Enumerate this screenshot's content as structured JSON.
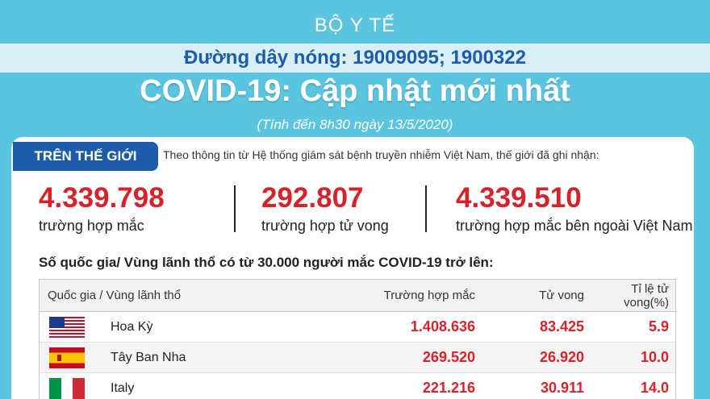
{
  "header": {
    "ministry": "BỘ Y TẾ",
    "hotline": "Đường dây nóng: 19009095; 1900322",
    "headline": "COVID-19: Cập nhật mới nhất",
    "as_of": "(Tính đến 8h30 ngày 13/5/2020)"
  },
  "world": {
    "tag": "TRÊN THẾ GIỚI",
    "intro": "Theo thông tin từ Hệ thống giám sát bệnh truyền nhiễm Việt Nam, thế giới đã ghi nhận:",
    "stats": [
      {
        "value": "4.339.798",
        "label": "trường hợp mắc"
      },
      {
        "value": "292.807",
        "label": "trường hợp tử vong"
      },
      {
        "value": "4.339.510",
        "label": "trường hợp  mắc bên ngoài Việt Nam"
      }
    ]
  },
  "table": {
    "title": "Số quốc gia/ Vùng lãnh thổ có từ 30.000 người  mắc COVID-19 trở lên:",
    "columns": [
      "Quốc gia / Vùng lãnh thổ",
      "Trường hợp mắc",
      "Tử vong",
      "Tỉ lệ tử vong(%)"
    ],
    "rows": [
      {
        "flag": "us-flag-icon",
        "country": "Hoa Kỳ",
        "cases": "1.408.636",
        "deaths": "83.425",
        "rate": "5.9"
      },
      {
        "flag": "spain-flag-icon",
        "country": "Tây Ban Nha",
        "cases": "269.520",
        "deaths": "26.920",
        "rate": "10.0"
      },
      {
        "flag": "italy-flag-icon",
        "country": "Italy",
        "cases": "221.216",
        "deaths": "30.911",
        "rate": "14.0"
      }
    ]
  },
  "colors": {
    "background": "#5bc4de",
    "accent_blue": "#1d5ca8",
    "number_red": "#d6232b"
  }
}
